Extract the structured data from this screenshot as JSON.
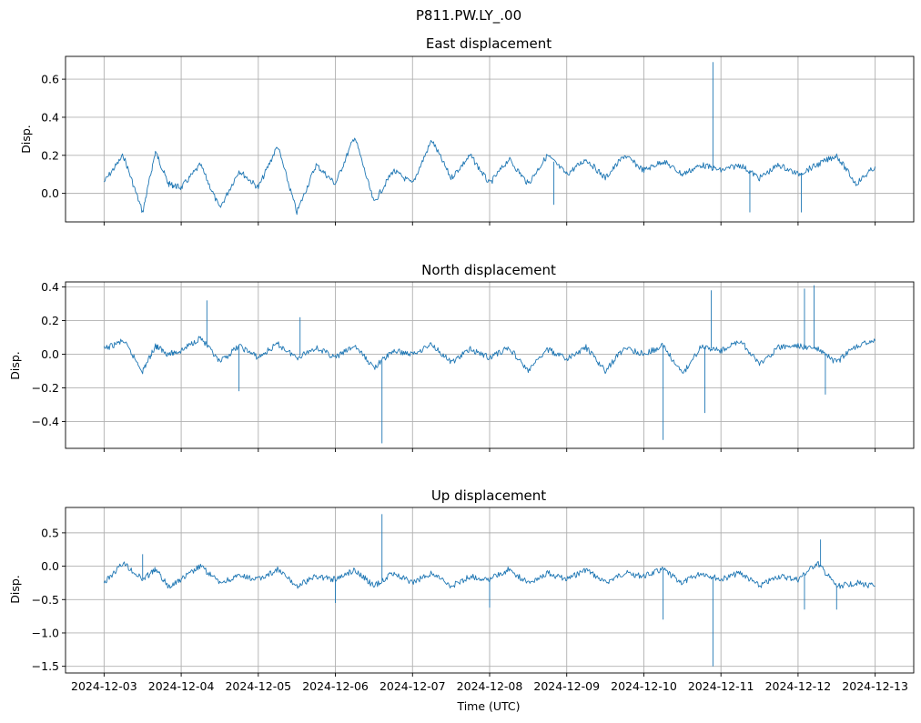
{
  "figure": {
    "suptitle": "P811.PW.LY_.00",
    "xlabel": "Time (UTC)",
    "series_color": "#1f77b4"
  },
  "chart_data": [
    {
      "type": "line",
      "title": "East displacement",
      "ylabel": "Disp.",
      "xlim": [
        "2024-12-03",
        "2024-12-13"
      ],
      "ylim": [
        -0.15,
        0.72
      ],
      "yticks": [
        0.0,
        0.2,
        0.4,
        0.6
      ],
      "ytick_labels": [
        "0.0",
        "0.2",
        "0.4",
        "0.6"
      ],
      "xtick_labels_visible": false,
      "grid": true,
      "x": [
        "2024-12-03T00:00",
        "2024-12-03T06:00",
        "2024-12-03T12:00",
        "2024-12-03T16:00",
        "2024-12-03T20:00",
        "2024-12-04T00:00",
        "2024-12-04T06:00",
        "2024-12-04T12:00",
        "2024-12-04T18:00",
        "2024-12-05T00:00",
        "2024-12-05T06:00",
        "2024-12-05T12:00",
        "2024-12-05T18:00",
        "2024-12-06T00:00",
        "2024-12-06T06:00",
        "2024-12-06T12:00",
        "2024-12-06T18:00",
        "2024-12-07T00:00",
        "2024-12-07T06:00",
        "2024-12-07T12:00",
        "2024-12-07T18:00",
        "2024-12-08T00:00",
        "2024-12-08T06:00",
        "2024-12-08T12:00",
        "2024-12-08T18:00",
        "2024-12-09T00:00",
        "2024-12-09T06:00",
        "2024-12-09T12:00",
        "2024-12-09T18:00",
        "2024-12-10T00:00",
        "2024-12-10T06:00",
        "2024-12-10T12:00",
        "2024-12-10T18:00",
        "2024-12-11T00:00",
        "2024-12-11T06:00",
        "2024-12-11T12:00",
        "2024-12-11T18:00",
        "2024-12-12T00:00",
        "2024-12-12T06:00",
        "2024-12-12T12:00",
        "2024-12-12T18:00",
        "2024-12-13T00:00"
      ],
      "y": [
        0.06,
        0.2,
        -0.1,
        0.22,
        0.05,
        0.03,
        0.15,
        -0.08,
        0.12,
        0.03,
        0.25,
        -0.1,
        0.15,
        0.05,
        0.3,
        -0.05,
        0.12,
        0.05,
        0.28,
        0.08,
        0.2,
        0.05,
        0.18,
        0.05,
        0.2,
        0.1,
        0.18,
        0.08,
        0.2,
        0.12,
        0.17,
        0.1,
        0.15,
        0.12,
        0.15,
        0.08,
        0.15,
        0.1,
        0.15,
        0.2,
        0.05,
        0.14
      ],
      "spikes": [
        {
          "x": "2024-12-10T21:30",
          "y": 0.69
        },
        {
          "x": "2024-12-12T01:00",
          "y": -0.1
        },
        {
          "x": "2024-12-08T20:00",
          "y": -0.06
        },
        {
          "x": "2024-12-11T09:00",
          "y": -0.1
        }
      ]
    },
    {
      "type": "line",
      "title": "North displacement",
      "ylabel": "Disp.",
      "xlim": [
        "2024-12-03",
        "2024-12-13"
      ],
      "ylim": [
        -0.56,
        0.43
      ],
      "yticks": [
        -0.4,
        -0.2,
        0.0,
        0.2,
        0.4
      ],
      "ytick_labels": [
        "−0.4",
        "−0.2",
        "0.0",
        "0.2",
        "0.4"
      ],
      "xtick_labels_visible": false,
      "grid": true,
      "x": [
        "2024-12-03T00:00",
        "2024-12-03T06:00",
        "2024-12-03T12:00",
        "2024-12-03T16:00",
        "2024-12-03T20:00",
        "2024-12-04T00:00",
        "2024-12-04T06:00",
        "2024-12-04T12:00",
        "2024-12-04T18:00",
        "2024-12-05T00:00",
        "2024-12-05T06:00",
        "2024-12-05T12:00",
        "2024-12-05T18:00",
        "2024-12-06T00:00",
        "2024-12-06T06:00",
        "2024-12-06T12:00",
        "2024-12-06T18:00",
        "2024-12-07T00:00",
        "2024-12-07T06:00",
        "2024-12-07T12:00",
        "2024-12-07T18:00",
        "2024-12-08T00:00",
        "2024-12-08T06:00",
        "2024-12-08T12:00",
        "2024-12-08T18:00",
        "2024-12-09T00:00",
        "2024-12-09T06:00",
        "2024-12-09T12:00",
        "2024-12-09T18:00",
        "2024-12-10T00:00",
        "2024-12-10T06:00",
        "2024-12-10T12:00",
        "2024-12-10T18:00",
        "2024-12-11T00:00",
        "2024-12-11T06:00",
        "2024-12-11T12:00",
        "2024-12-11T18:00",
        "2024-12-12T00:00",
        "2024-12-12T06:00",
        "2024-12-12T12:00",
        "2024-12-12T18:00",
        "2024-12-13T00:00"
      ],
      "y": [
        0.03,
        0.08,
        -0.1,
        0.05,
        0.0,
        0.02,
        0.1,
        -0.05,
        0.05,
        -0.02,
        0.06,
        -0.02,
        0.04,
        -0.02,
        0.05,
        -0.08,
        0.02,
        0.0,
        0.06,
        -0.05,
        0.03,
        -0.02,
        0.04,
        -0.1,
        0.03,
        -0.03,
        0.04,
        -0.1,
        0.04,
        0.0,
        0.05,
        -0.12,
        0.05,
        0.02,
        0.08,
        -0.06,
        0.04,
        0.05,
        0.03,
        -0.05,
        0.05,
        0.08
      ],
      "spikes": [
        {
          "x": "2024-12-04T08:00",
          "y": 0.32
        },
        {
          "x": "2024-12-05T13:00",
          "y": 0.22
        },
        {
          "x": "2024-12-06T14:30",
          "y": -0.53
        },
        {
          "x": "2024-12-04T18:00",
          "y": -0.22
        },
        {
          "x": "2024-12-10T06:00",
          "y": -0.51
        },
        {
          "x": "2024-12-10T21:00",
          "y": 0.38
        },
        {
          "x": "2024-12-10T19:00",
          "y": -0.35
        },
        {
          "x": "2024-12-12T02:00",
          "y": 0.39
        },
        {
          "x": "2024-12-12T05:00",
          "y": 0.41
        },
        {
          "x": "2024-12-12T08:30",
          "y": -0.24
        }
      ]
    },
    {
      "type": "line",
      "title": "Up displacement",
      "ylabel": "Disp.",
      "xlim": [
        "2024-12-03",
        "2024-12-13"
      ],
      "ylim": [
        -1.6,
        0.88
      ],
      "yticks": [
        -1.5,
        -1.0,
        -0.5,
        0.0,
        0.5
      ],
      "ytick_labels": [
        "−1.5",
        "−1.0",
        "−0.5",
        "0.0",
        "0.5"
      ],
      "xticks": [
        "2024-12-03",
        "2024-12-04",
        "2024-12-05",
        "2024-12-06",
        "2024-12-07",
        "2024-12-08",
        "2024-12-09",
        "2024-12-10",
        "2024-12-11",
        "2024-12-12",
        "2024-12-13"
      ],
      "xtick_labels": [
        "2024-12-03",
        "2024-12-04",
        "2024-12-05",
        "2024-12-06",
        "2024-12-07",
        "2024-12-08",
        "2024-12-09",
        "2024-12-10",
        "2024-12-11",
        "2024-12-12",
        "2024-12-13"
      ],
      "xtick_labels_visible": true,
      "grid": true,
      "x": [
        "2024-12-03T00:00",
        "2024-12-03T06:00",
        "2024-12-03T12:00",
        "2024-12-03T16:00",
        "2024-12-03T20:00",
        "2024-12-04T00:00",
        "2024-12-04T06:00",
        "2024-12-04T12:00",
        "2024-12-04T18:00",
        "2024-12-05T00:00",
        "2024-12-05T06:00",
        "2024-12-05T12:00",
        "2024-12-05T18:00",
        "2024-12-06T00:00",
        "2024-12-06T06:00",
        "2024-12-06T12:00",
        "2024-12-06T18:00",
        "2024-12-07T00:00",
        "2024-12-07T06:00",
        "2024-12-07T12:00",
        "2024-12-07T18:00",
        "2024-12-08T00:00",
        "2024-12-08T06:00",
        "2024-12-08T12:00",
        "2024-12-08T18:00",
        "2024-12-09T00:00",
        "2024-12-09T06:00",
        "2024-12-09T12:00",
        "2024-12-09T18:00",
        "2024-12-10T00:00",
        "2024-12-10T06:00",
        "2024-12-10T12:00",
        "2024-12-10T18:00",
        "2024-12-11T00:00",
        "2024-12-11T06:00",
        "2024-12-11T12:00",
        "2024-12-11T18:00",
        "2024-12-12T00:00",
        "2024-12-12T06:00",
        "2024-12-12T12:00",
        "2024-12-12T18:00",
        "2024-12-13T00:00"
      ],
      "y": [
        -0.25,
        0.05,
        -0.2,
        -0.05,
        -0.3,
        -0.2,
        0.0,
        -0.25,
        -0.15,
        -0.2,
        -0.05,
        -0.3,
        -0.15,
        -0.2,
        -0.05,
        -0.3,
        -0.1,
        -0.25,
        -0.1,
        -0.3,
        -0.15,
        -0.2,
        -0.05,
        -0.25,
        -0.1,
        -0.2,
        -0.05,
        -0.25,
        -0.1,
        -0.15,
        -0.05,
        -0.25,
        -0.1,
        -0.2,
        -0.1,
        -0.3,
        -0.15,
        -0.2,
        0.05,
        -0.3,
        -0.25,
        -0.3
      ],
      "spikes": [
        {
          "x": "2024-12-06T14:30",
          "y": 0.78
        },
        {
          "x": "2024-12-10T06:00",
          "y": -0.8
        },
        {
          "x": "2024-12-10T21:30",
          "y": -1.5
        },
        {
          "x": "2024-12-06T00:00",
          "y": -0.55
        },
        {
          "x": "2024-12-08T00:00",
          "y": -0.62
        },
        {
          "x": "2024-12-12T02:00",
          "y": -0.65
        },
        {
          "x": "2024-12-12T07:00",
          "y": 0.4
        },
        {
          "x": "2024-12-12T12:00",
          "y": -0.65
        },
        {
          "x": "2024-12-03T12:00",
          "y": 0.18
        }
      ]
    }
  ]
}
